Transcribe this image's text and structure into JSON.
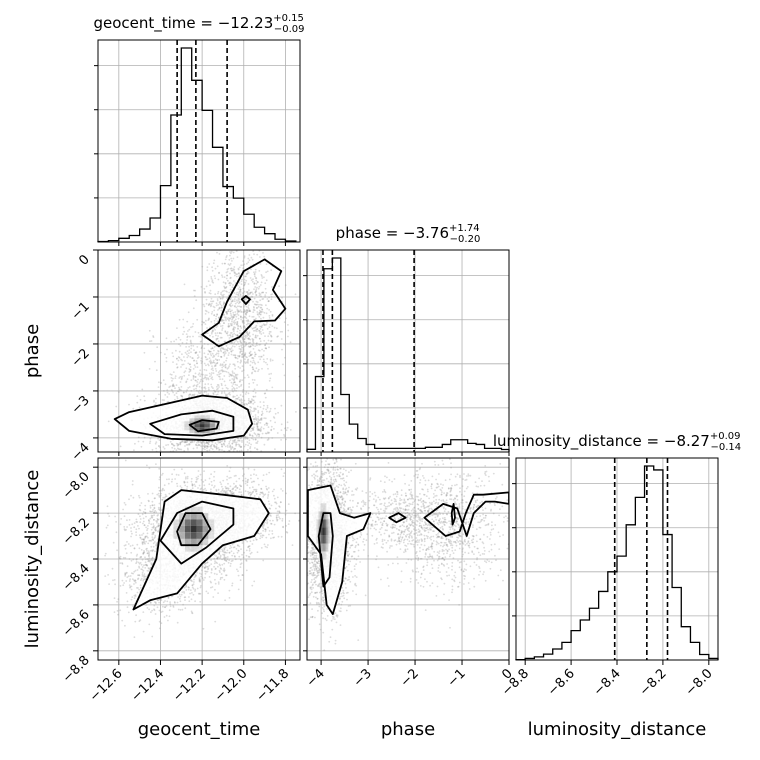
{
  "chart_data": {
    "type": "corner",
    "parameters": [
      "geocent_time",
      "phase",
      "luminosity_distance"
    ],
    "titles": [
      {
        "param": "geocent_time",
        "prefix": "geocent_time = −12.23",
        "plus": "+0.15",
        "minus": "−0.09"
      },
      {
        "param": "phase",
        "prefix": "phase = −3.76",
        "plus": "+1.74",
        "minus": "−0.20"
      },
      {
        "param": "luminosity_distance",
        "prefix": "luminosity_distance = −8.27",
        "plus": "+0.09",
        "minus": "−0.14"
      }
    ],
    "axis_labels": {
      "x": [
        "geocent_time",
        "phase",
        "luminosity_distance"
      ],
      "y": [
        "phase",
        "luminosity_distance"
      ]
    },
    "ranges": {
      "geocent_time": [
        -12.7,
        -11.73
      ],
      "phase": [
        -4.3,
        0
      ],
      "luminosity_distance": [
        -8.84,
        -7.96
      ]
    },
    "ticks": {
      "geocent_time": [
        -12.6,
        -12.4,
        -12.2,
        -12.0,
        -11.8
      ],
      "phase": [
        -4,
        -3,
        -2,
        -1,
        0
      ],
      "luminosity_distance": [
        -8.8,
        -8.6,
        -8.4,
        -8.2,
        -8.0
      ]
    },
    "tick_labels": {
      "geocent_time": [
        "−12.6",
        "−12.4",
        "−12.2",
        "−12.0",
        "−11.8"
      ],
      "phase": [
        "−4",
        "−3",
        "−2",
        "−1",
        "0"
      ],
      "luminosity_distance": [
        "−8.8",
        "−8.6",
        "−8.4",
        "−8.2",
        "−8.0"
      ]
    },
    "quantiles": {
      "geocent_time": [
        -12.32,
        -12.23,
        -12.08
      ],
      "phase": [
        -3.96,
        -3.76,
        -2.02
      ],
      "luminosity_distance": [
        -8.41,
        -8.27,
        -8.18
      ]
    },
    "histograms": {
      "geocent_time": {
        "edges": [
          -12.7,
          -12.65,
          -12.6,
          -12.55,
          -12.5,
          -12.45,
          -12.4,
          -12.35,
          -12.3,
          -12.25,
          -12.2,
          -12.15,
          -12.1,
          -12.05,
          -12.0,
          -11.95,
          -11.9,
          -11.85,
          -11.8,
          -11.75
        ],
        "counts": [
          1,
          3,
          8,
          14,
          28,
          52,
          122,
          275,
          420,
          350,
          285,
          205,
          120,
          95,
          60,
          32,
          18,
          6,
          2
        ]
      },
      "phase": {
        "edges": [
          -4.3,
          -4.12,
          -3.94,
          -3.76,
          -3.58,
          -3.4,
          -3.22,
          -3.04,
          -2.86,
          -2.68,
          -2.5,
          -2.32,
          -2.14,
          -1.96,
          -1.78,
          -1.6,
          -1.42,
          -1.24,
          -1.06,
          -0.88,
          -0.7,
          -0.52,
          -0.34,
          -0.16,
          0
        ],
        "counts": [
          15,
          420,
          1020,
          1080,
          320,
          155,
          75,
          42,
          20,
          20,
          20,
          20,
          20,
          20,
          26,
          26,
          42,
          68,
          68,
          48,
          42,
          20,
          20,
          14
        ]
      },
      "luminosity_distance": {
        "edges": [
          -8.84,
          -8.8,
          -8.76,
          -8.72,
          -8.68,
          -8.64,
          -8.6,
          -8.56,
          -8.52,
          -8.48,
          -8.44,
          -8.4,
          -8.36,
          -8.32,
          -8.28,
          -8.24,
          -8.2,
          -8.16,
          -8.12,
          -8.08,
          -8.04,
          -8.0,
          -7.96
        ],
        "counts": [
          1,
          4,
          8,
          15,
          28,
          45,
          75,
          102,
          132,
          175,
          225,
          265,
          345,
          415,
          495,
          485,
          320,
          185,
          85,
          45,
          14,
          4
        ]
      }
    },
    "scatter_clusters": {
      "phase_vs_geocent_time": [
        {
          "x": -12.16,
          "y": -3.7,
          "sx": 0.13,
          "sy": 0.32,
          "n": 2200
        },
        {
          "x": -12.02,
          "y": -1.4,
          "sx": 0.09,
          "sy": 0.75,
          "n": 1100
        },
        {
          "x": -12.18,
          "y": -2.6,
          "sx": 0.12,
          "sy": 0.55,
          "n": 500
        }
      ],
      "luminosity_distance_vs_geocent_time": [
        {
          "x": -12.26,
          "y": -8.29,
          "sx": 0.13,
          "sy": 0.1,
          "n": 2300
        },
        {
          "x": -12.05,
          "y": -8.2,
          "sx": 0.12,
          "sy": 0.08,
          "n": 900
        },
        {
          "x": -12.42,
          "y": -8.5,
          "sx": 0.1,
          "sy": 0.08,
          "n": 500
        }
      ],
      "luminosity_distance_vs_phase": [
        {
          "x": -3.85,
          "y": -8.3,
          "sx": 0.25,
          "sy": 0.15,
          "n": 2000
        },
        {
          "x": -1.3,
          "y": -8.26,
          "sx": 0.6,
          "sy": 0.13,
          "n": 900
        },
        {
          "x": -2.4,
          "y": -8.22,
          "sx": 0.5,
          "sy": 0.07,
          "n": 400
        }
      ]
    },
    "contours": {
      "phase_vs_geocent_time": [
        [
          [
            -12.62,
            -3.6
          ],
          [
            -12.55,
            -3.45
          ],
          [
            -12.35,
            -3.25
          ],
          [
            -12.2,
            -3.1
          ],
          [
            -12.08,
            -3.15
          ],
          [
            -11.98,
            -3.4
          ],
          [
            -11.96,
            -3.7
          ],
          [
            -12.0,
            -3.95
          ],
          [
            -12.15,
            -4.05
          ],
          [
            -12.35,
            -4.02
          ],
          [
            -12.55,
            -3.85
          ],
          [
            -12.62,
            -3.6
          ]
        ],
        [
          [
            -12.45,
            -3.7
          ],
          [
            -12.3,
            -3.5
          ],
          [
            -12.15,
            -3.42
          ],
          [
            -12.05,
            -3.55
          ],
          [
            -12.05,
            -3.85
          ],
          [
            -12.2,
            -3.95
          ],
          [
            -12.38,
            -3.92
          ],
          [
            -12.45,
            -3.7
          ]
        ],
        [
          [
            -12.26,
            -3.72
          ],
          [
            -12.2,
            -3.62
          ],
          [
            -12.12,
            -3.66
          ],
          [
            -12.13,
            -3.8
          ],
          [
            -12.22,
            -3.86
          ],
          [
            -12.26,
            -3.72
          ]
        ],
        [
          [
            -12.2,
            -1.8
          ],
          [
            -12.12,
            -1.55
          ],
          [
            -12.08,
            -1.1
          ],
          [
            -12.0,
            -0.45
          ],
          [
            -11.9,
            -0.2
          ],
          [
            -11.82,
            -0.45
          ],
          [
            -11.86,
            -0.85
          ],
          [
            -11.8,
            -1.25
          ],
          [
            -11.85,
            -1.5
          ],
          [
            -11.95,
            -1.52
          ],
          [
            -12.02,
            -1.85
          ],
          [
            -12.12,
            -2.05
          ],
          [
            -12.2,
            -1.8
          ]
        ],
        [
          [
            -12.01,
            -1.05
          ],
          [
            -11.99,
            -0.98
          ],
          [
            -11.97,
            -1.05
          ],
          [
            -11.99,
            -1.15
          ],
          [
            -12.01,
            -1.05
          ]
        ]
      ],
      "luminosity_distance_vs_geocent_time": [
        [
          [
            -12.53,
            -8.62
          ],
          [
            -12.42,
            -8.4
          ],
          [
            -12.38,
            -8.15
          ],
          [
            -12.3,
            -8.1
          ],
          [
            -12.1,
            -8.12
          ],
          [
            -11.92,
            -8.14
          ],
          [
            -11.88,
            -8.2
          ],
          [
            -11.95,
            -8.3
          ],
          [
            -12.1,
            -8.34
          ],
          [
            -12.2,
            -8.42
          ],
          [
            -12.32,
            -8.55
          ],
          [
            -12.45,
            -8.58
          ],
          [
            -12.53,
            -8.62
          ]
        ],
        [
          [
            -12.4,
            -8.32
          ],
          [
            -12.32,
            -8.2
          ],
          [
            -12.2,
            -8.15
          ],
          [
            -12.05,
            -8.18
          ],
          [
            -12.05,
            -8.25
          ],
          [
            -12.18,
            -8.35
          ],
          [
            -12.3,
            -8.42
          ],
          [
            -12.4,
            -8.32
          ]
        ],
        [
          [
            -12.32,
            -8.28
          ],
          [
            -12.28,
            -8.2
          ],
          [
            -12.2,
            -8.2
          ],
          [
            -12.16,
            -8.27
          ],
          [
            -12.22,
            -8.34
          ],
          [
            -12.3,
            -8.34
          ],
          [
            -12.32,
            -8.28
          ]
        ]
      ],
      "luminosity_distance_vs_phase": [
        [
          [
            -4.28,
            -8.1
          ],
          [
            -3.8,
            -8.08
          ],
          [
            -3.6,
            -8.2
          ],
          [
            -3.3,
            -8.22
          ],
          [
            -2.95,
            -8.2
          ],
          [
            -3.1,
            -8.27
          ],
          [
            -3.45,
            -8.3
          ],
          [
            -3.55,
            -8.5
          ],
          [
            -3.75,
            -8.64
          ],
          [
            -3.88,
            -8.6
          ],
          [
            -4.0,
            -8.38
          ],
          [
            -4.28,
            -8.3
          ],
          [
            -4.28,
            -8.1
          ]
        ],
        [
          [
            -4.05,
            -8.3
          ],
          [
            -3.95,
            -8.2
          ],
          [
            -3.8,
            -8.2
          ],
          [
            -3.75,
            -8.3
          ],
          [
            -3.82,
            -8.48
          ],
          [
            -3.95,
            -8.52
          ],
          [
            -4.05,
            -8.3
          ]
        ],
        [
          [
            -1.8,
            -8.22
          ],
          [
            -1.4,
            -8.16
          ],
          [
            -1.1,
            -8.18
          ],
          [
            -0.9,
            -8.3
          ],
          [
            -0.75,
            -8.2
          ],
          [
            -0.5,
            -8.15
          ],
          [
            -0.3,
            -8.15
          ],
          [
            0,
            -8.16
          ],
          [
            0,
            -8.11
          ],
          [
            -0.55,
            -8.12
          ],
          [
            -0.75,
            -8.12
          ],
          [
            -0.92,
            -8.2
          ],
          [
            -1.05,
            -8.28
          ],
          [
            -1.35,
            -8.3
          ],
          [
            -1.8,
            -8.22
          ]
        ],
        [
          [
            -1.22,
            -8.2
          ],
          [
            -1.18,
            -8.16
          ],
          [
            -1.15,
            -8.22
          ],
          [
            -1.2,
            -8.25
          ],
          [
            -1.22,
            -8.2
          ]
        ],
        [
          [
            -2.55,
            -8.22
          ],
          [
            -2.35,
            -8.2
          ],
          [
            -2.2,
            -8.22
          ],
          [
            -2.4,
            -8.24
          ],
          [
            -2.55,
            -8.22
          ]
        ]
      ]
    },
    "density_peaks": {
      "phase_vs_geocent_time": [
        {
          "x": -12.2,
          "y": -3.74,
          "sx": 0.07,
          "sy": 0.18
        }
      ],
      "luminosity_distance_vs_geocent_time": [
        {
          "x": -12.24,
          "y": -8.27,
          "sx": 0.08,
          "sy": 0.08
        }
      ],
      "luminosity_distance_vs_phase": [
        {
          "x": -3.95,
          "y": -8.28,
          "sx": 0.12,
          "sy": 0.1
        }
      ]
    },
    "grid": true,
    "colors": {
      "lines": "#000000",
      "scatter": "#9a9a9a",
      "grid": "#b0b0b0",
      "density": "#000000"
    }
  }
}
